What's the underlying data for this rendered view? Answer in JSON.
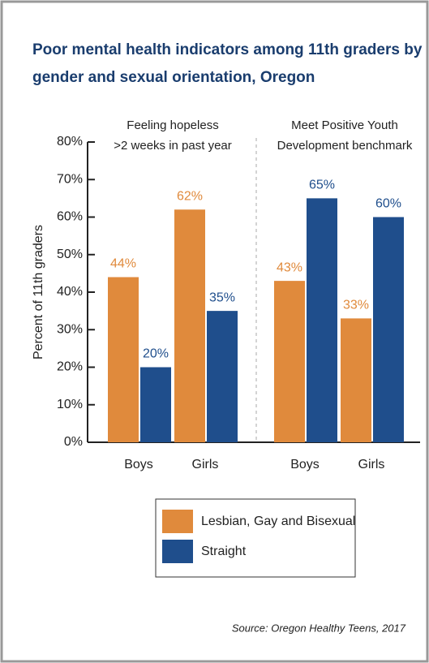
{
  "chart_data": {
    "type": "bar",
    "title": [
      "Poor mental health indicators among 11th graders by",
      "gender and sexual orientation, Oregon"
    ],
    "panel_titles": [
      [
        "Feeling hopeless",
        ">2 weeks in past year"
      ],
      [
        "Meet Positive Youth",
        "Development benchmark"
      ]
    ],
    "ylabel": "Percent of 11th graders",
    "categories": [
      "Boys",
      "Girls",
      "Boys",
      "Girls"
    ],
    "series": [
      {
        "name": "Lesbian, Gay and Bisexual",
        "color": "#e08a3c",
        "values": [
          44,
          62,
          43,
          33
        ],
        "value_labels": [
          "44%",
          "62%",
          "43%",
          "33%"
        ]
      },
      {
        "name": "Straight",
        "color": "#1f4e8c",
        "values": [
          20,
          35,
          65,
          60
        ],
        "value_labels": [
          "20%",
          "35%",
          "65%",
          "60%"
        ]
      }
    ],
    "ylim": [
      0,
      80
    ],
    "yticks": [
      {
        "value": 0,
        "label": "0%"
      },
      {
        "value": 10,
        "label": "10%"
      },
      {
        "value": 20,
        "label": "20%"
      },
      {
        "value": 30,
        "label": "30%"
      },
      {
        "value": 40,
        "label": "40%"
      },
      {
        "value": 50,
        "label": "50%"
      },
      {
        "value": 60,
        "label": "60%"
      },
      {
        "value": 70,
        "label": "70%"
      },
      {
        "value": 80,
        "label": "80%"
      }
    ],
    "source": "Source: Oregon Healthy Teens, 2017"
  }
}
